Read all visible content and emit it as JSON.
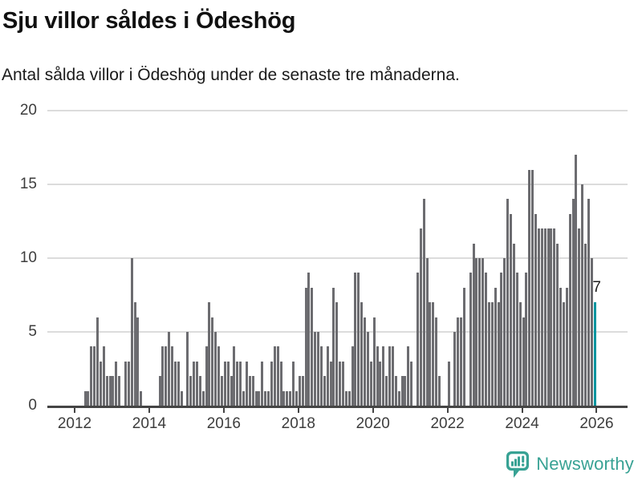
{
  "header": {
    "title": "Sju villor såldes i Ödeshög",
    "subtitle": "Antal sålda villor i Ödeshög under de senaste tre månaderna."
  },
  "chart_data": {
    "type": "bar",
    "title": "Sju villor såldes i Ödeshög",
    "subtitle": "Antal sålda villor i Ödeshög under de senaste tre månaderna.",
    "frequency": "monthly",
    "start_month": "2012-04",
    "end_month": "2025-12",
    "values": [
      1,
      1,
      4,
      4,
      6,
      3,
      4,
      2,
      2,
      2,
      3,
      2,
      0,
      3,
      3,
      10,
      7,
      6,
      1,
      0,
      0,
      0,
      0,
      0,
      2,
      4,
      4,
      5,
      4,
      3,
      3,
      1,
      0,
      5,
      2,
      3,
      3,
      2,
      1,
      4,
      7,
      6,
      5,
      4,
      2,
      3,
      3,
      2,
      4,
      3,
      3,
      1,
      3,
      2,
      2,
      1,
      1,
      3,
      1,
      1,
      3,
      4,
      4,
      3,
      1,
      1,
      1,
      3,
      1,
      2,
      2,
      8,
      9,
      8,
      5,
      5,
      4,
      2,
      4,
      3,
      8,
      7,
      3,
      3,
      1,
      1,
      4,
      9,
      9,
      7,
      6,
      5,
      3,
      6,
      4,
      3,
      4,
      2,
      4,
      4,
      2,
      1,
      2,
      2,
      4,
      3,
      0,
      9,
      12,
      14,
      10,
      7,
      7,
      6,
      2,
      0,
      0,
      3,
      0,
      5,
      6,
      6,
      8,
      0,
      9,
      11,
      10,
      10,
      10,
      9,
      7,
      7,
      8,
      7,
      9,
      10,
      14,
      13,
      11,
      9,
      7,
      6,
      9,
      16,
      16,
      13,
      12,
      12,
      12,
      12,
      12,
      12,
      11,
      8,
      7,
      8,
      13,
      14,
      17,
      12,
      15,
      11,
      14,
      10,
      7
    ],
    "highlight_last": {
      "value": 7,
      "label": "7",
      "color": "#00949e"
    },
    "bar_color": "#6c6c70",
    "ylim": [
      0,
      20
    ],
    "y_ticks": [
      0,
      5,
      10,
      15,
      20
    ],
    "x_tick_labels": [
      "2012",
      "2014",
      "2016",
      "2018",
      "2020",
      "2022",
      "2024",
      "2026"
    ],
    "grid": true,
    "legend": "none"
  },
  "footer": {
    "brand_name": "Newsworthy",
    "brand_color": "#38a294",
    "logo_icon": "bar-chart-speech-bubble-icon"
  }
}
